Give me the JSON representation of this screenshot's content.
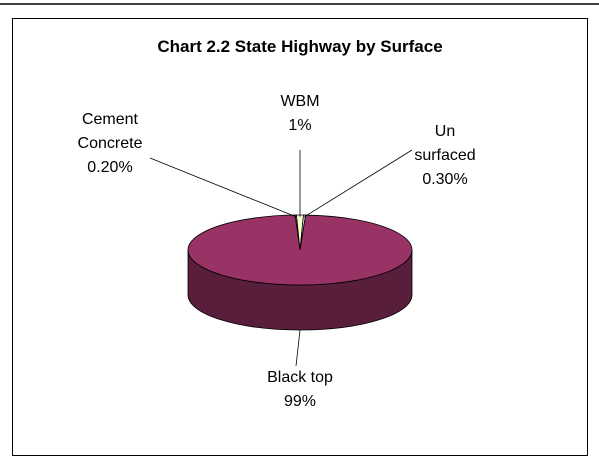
{
  "chart_data": {
    "type": "pie3d",
    "title": "Chart 2.2 State Highway by Surface",
    "categories": [
      "Cement\nConcrete",
      "WBM",
      "Un\nsurfaced",
      "Black top"
    ],
    "values": [
      0.2,
      1,
      0.3,
      99
    ],
    "value_labels": [
      "0.20%",
      "1%",
      "0.30%",
      "99%"
    ],
    "colors": [
      "#9999ff",
      "#ffffcc",
      "#ccffff",
      "#993366"
    ]
  }
}
